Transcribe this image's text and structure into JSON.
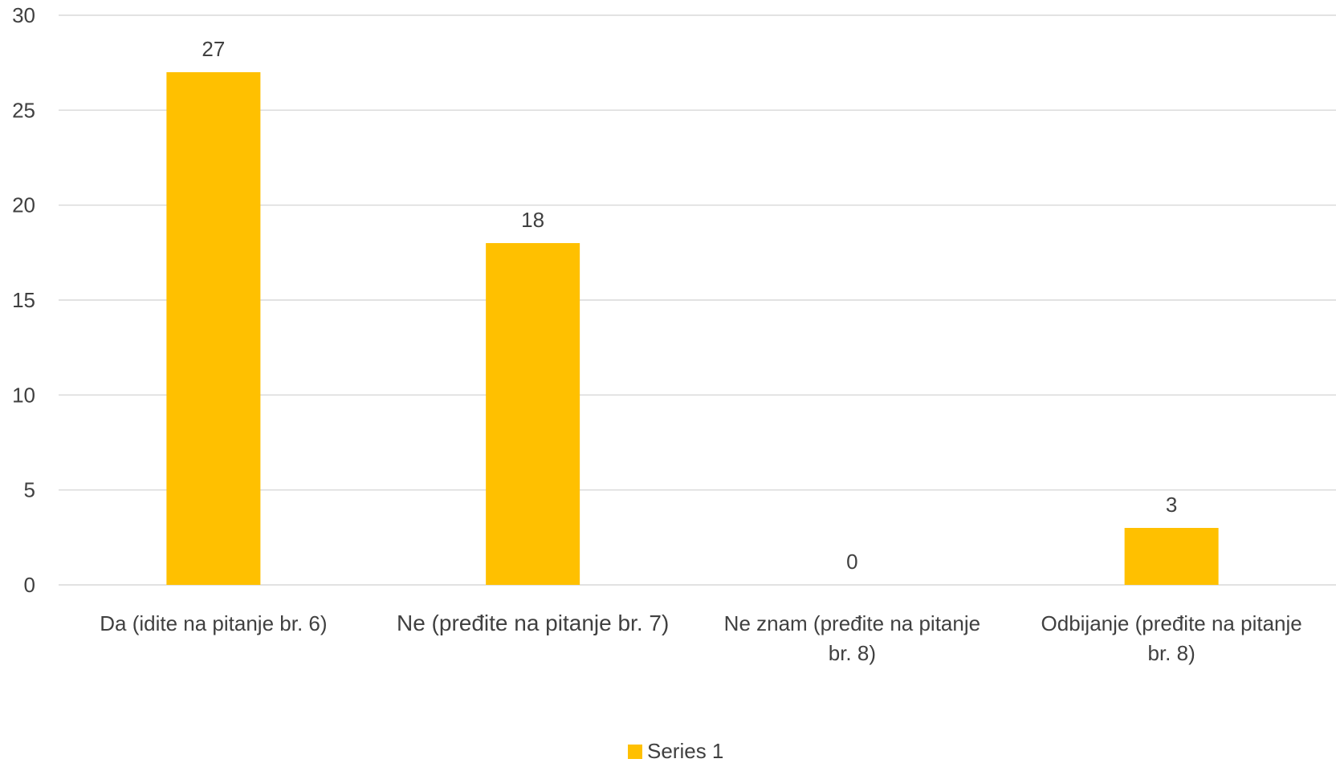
{
  "chart_data": {
    "type": "bar",
    "title": "",
    "xlabel": "",
    "ylabel": "",
    "ylim": [
      0,
      30
    ],
    "yticks": [
      0,
      5,
      10,
      15,
      20,
      25,
      30
    ],
    "grid": true,
    "legend_position": "bottom",
    "categories": [
      [
        "Da (idite na pitanje br. 6)"
      ],
      [
        "Ne (pređite na pitanje br. 7)"
      ],
      [
        "Ne znam (pređite na pitanje",
        "br. 8)"
      ],
      [
        "Odbijanje (pređite na pitanje",
        "br. 8)"
      ]
    ],
    "series": [
      {
        "name": "Series 1",
        "values": [
          27,
          18,
          0,
          3
        ],
        "color": "#FFC000"
      }
    ]
  }
}
